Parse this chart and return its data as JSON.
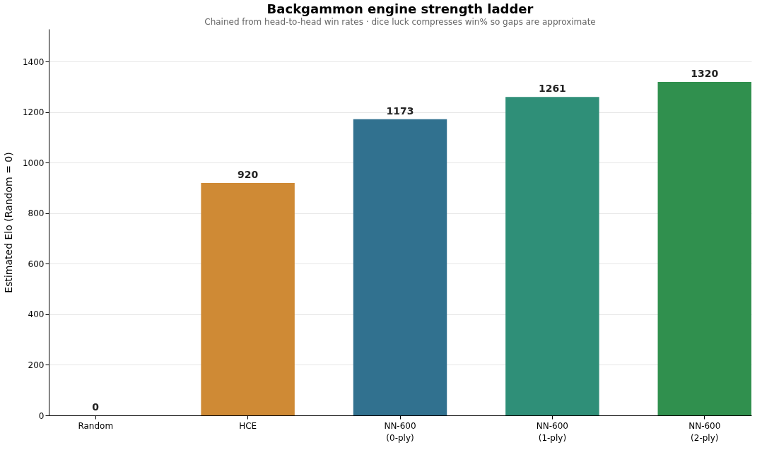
{
  "chart_data": {
    "type": "bar",
    "title": "Backgammon engine strength ladder",
    "subtitle": "Chained from head-to-head win rates · dice luck compresses win% so gaps are approximate",
    "ylabel": "Estimated Elo  (Random = 0)",
    "categories": [
      "Random",
      "HCE",
      "NN-600\n(0-ply)",
      "NN-600\n(1-ply)",
      "NN-600\n(2-ply)"
    ],
    "values": [
      0,
      920,
      1173,
      1261,
      1320
    ],
    "colors": [
      "#888888",
      "#cf8a35",
      "#31718f",
      "#2f8f78",
      "#30904e"
    ],
    "ylim": [
      0,
      1530
    ],
    "yticks": [
      0,
      200,
      400,
      600,
      800,
      1000,
      1200,
      1400
    ],
    "grid": "y",
    "legend": false,
    "data_labels": true
  }
}
